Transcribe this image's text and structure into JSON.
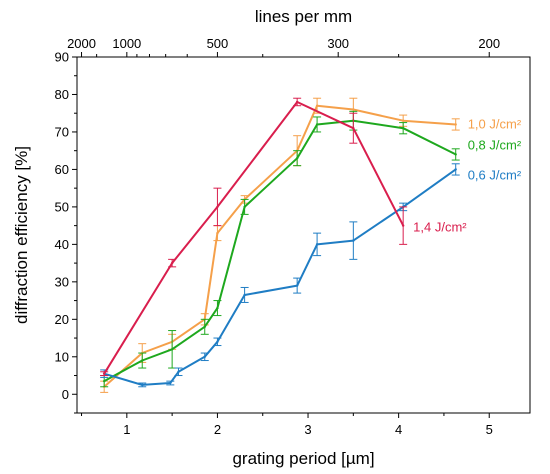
{
  "chart_data": {
    "type": "line",
    "xlabel": "grating period [µm]",
    "ylabel": "diffraction efficiency [%]",
    "top_xlabel": "lines per mm",
    "xlim": [
      0.45,
      5.45
    ],
    "ylim": [
      -5,
      90
    ],
    "xticks": [
      1,
      2,
      3,
      4,
      5
    ],
    "xtick_labels": [
      "1",
      "2",
      "3",
      "4",
      "5"
    ],
    "yticks": [
      0,
      10,
      20,
      30,
      40,
      50,
      60,
      70,
      80,
      90
    ],
    "ytick_labels": [
      "0",
      "10",
      "20",
      "30",
      "40",
      "50",
      "60",
      "70",
      "80",
      "90"
    ],
    "top_ticks": [
      {
        "label": "2000",
        "x": 0.5
      },
      {
        "label": "1000",
        "x": 1.0
      },
      {
        "label": "500",
        "x": 2.0
      },
      {
        "label": "300",
        "x": 3.333
      },
      {
        "label": "200",
        "x": 5.0
      }
    ],
    "grid": false,
    "legend": "inline labels at right",
    "series": [
      {
        "name": "1,0 J/cm²",
        "color": "#f5a04a",
        "points": [
          {
            "x": 0.75,
            "y": 2,
            "err": 1.5
          },
          {
            "x": 1.17,
            "y": 11,
            "err": 2.5
          },
          {
            "x": 1.5,
            "y": 14,
            "err": 2
          },
          {
            "x": 1.86,
            "y": 20,
            "err": 1.5
          },
          {
            "x": 2.0,
            "y": 43,
            "err": 2
          },
          {
            "x": 2.3,
            "y": 52,
            "err": 1
          },
          {
            "x": 2.88,
            "y": 65,
            "err": 4
          },
          {
            "x": 3.1,
            "y": 77,
            "err": 2
          },
          {
            "x": 3.5,
            "y": 76,
            "err": 3
          },
          {
            "x": 4.05,
            "y": 73,
            "err": 1.5
          },
          {
            "x": 4.63,
            "y": 72,
            "err": 1.5
          }
        ]
      },
      {
        "name": "0,8 J/cm²",
        "color": "#1ea81e",
        "points": [
          {
            "x": 0.75,
            "y": 3.5,
            "err": 1.5
          },
          {
            "x": 1.17,
            "y": 9,
            "err": 2
          },
          {
            "x": 1.5,
            "y": 12,
            "err": 5
          },
          {
            "x": 1.86,
            "y": 18,
            "err": 2
          },
          {
            "x": 2.0,
            "y": 23,
            "err": 2
          },
          {
            "x": 2.3,
            "y": 50,
            "err": 2
          },
          {
            "x": 2.88,
            "y": 63,
            "err": 2
          },
          {
            "x": 3.1,
            "y": 72,
            "err": 2
          },
          {
            "x": 3.5,
            "y": 73,
            "err": 2.5
          },
          {
            "x": 4.05,
            "y": 71,
            "err": 1.5
          },
          {
            "x": 4.63,
            "y": 64,
            "err": 1.5
          }
        ]
      },
      {
        "name": "0,6 J/cm²",
        "color": "#1f7dc4",
        "points": [
          {
            "x": 0.75,
            "y": 5.5,
            "err": 1
          },
          {
            "x": 1.17,
            "y": 2.5,
            "err": 0.5
          },
          {
            "x": 1.48,
            "y": 3,
            "err": 0.5
          },
          {
            "x": 1.57,
            "y": 6,
            "err": 1
          },
          {
            "x": 1.86,
            "y": 10,
            "err": 1
          },
          {
            "x": 2.0,
            "y": 14,
            "err": 1
          },
          {
            "x": 2.3,
            "y": 26.5,
            "err": 2
          },
          {
            "x": 2.88,
            "y": 29,
            "err": 2
          },
          {
            "x": 3.1,
            "y": 40,
            "err": 3
          },
          {
            "x": 3.5,
            "y": 41,
            "err": 5
          },
          {
            "x": 4.05,
            "y": 50,
            "err": 1
          },
          {
            "x": 4.63,
            "y": 60,
            "err": 1.5
          }
        ]
      },
      {
        "name": "1,4 J/cm²",
        "color": "#d91e4d",
        "points": [
          {
            "x": 0.75,
            "y": 5.5,
            "err": 0.5
          },
          {
            "x": 1.5,
            "y": 35,
            "err": 1
          },
          {
            "x": 2.0,
            "y": 50,
            "err": 5
          },
          {
            "x": 2.88,
            "y": 78,
            "err": 1
          },
          {
            "x": 3.5,
            "y": 71,
            "err": 4
          },
          {
            "x": 4.05,
            "y": 45,
            "err": 5
          }
        ]
      }
    ]
  }
}
